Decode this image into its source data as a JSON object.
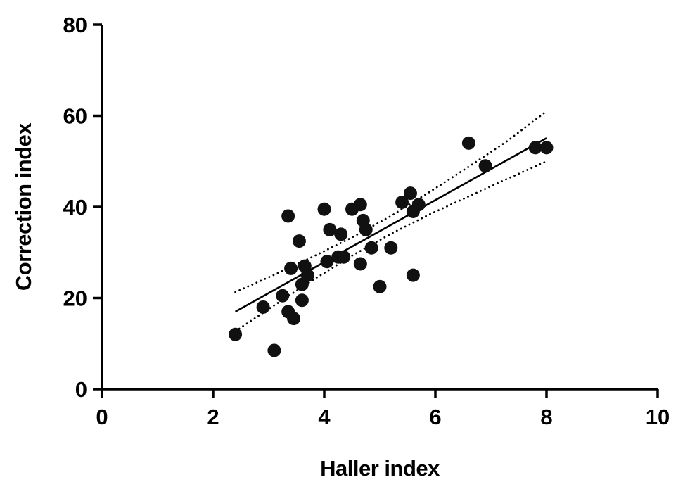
{
  "figure": {
    "xlabel": "Haller index",
    "ylabel": "Correction index"
  },
  "chart_data": {
    "type": "scatter",
    "title": "",
    "xlabel": "Haller index",
    "ylabel": "Correction index",
    "xlim": [
      0,
      10
    ],
    "ylim": [
      0,
      80
    ],
    "x_ticks": [
      0,
      2,
      4,
      6,
      8,
      10
    ],
    "y_ticks": [
      0,
      20,
      40,
      60,
      80
    ],
    "grid": false,
    "legend": "none",
    "marker_color": "#111111",
    "line_color": "#000000",
    "ci_style": "dotted",
    "points": [
      [
        2.4,
        12
      ],
      [
        2.9,
        18
      ],
      [
        3.1,
        8.5
      ],
      [
        3.25,
        20.5
      ],
      [
        3.35,
        17
      ],
      [
        3.35,
        38
      ],
      [
        3.4,
        26.5
      ],
      [
        3.45,
        15.5
      ],
      [
        3.55,
        32.5
      ],
      [
        3.6,
        23
      ],
      [
        3.6,
        19.5
      ],
      [
        3.65,
        27
      ],
      [
        3.7,
        25
      ],
      [
        4.0,
        39.5
      ],
      [
        4.05,
        28
      ],
      [
        4.1,
        35
      ],
      [
        4.25,
        29
      ],
      [
        4.3,
        34
      ],
      [
        4.35,
        29
      ],
      [
        4.5,
        39.5
      ],
      [
        4.65,
        40.5
      ],
      [
        4.65,
        27.5
      ],
      [
        4.7,
        37
      ],
      [
        4.75,
        35
      ],
      [
        4.85,
        31
      ],
      [
        5.0,
        22.5
      ],
      [
        5.2,
        31
      ],
      [
        5.4,
        41
      ],
      [
        5.55,
        43
      ],
      [
        5.6,
        39
      ],
      [
        5.6,
        25
      ],
      [
        5.7,
        40.5
      ],
      [
        6.6,
        54
      ],
      [
        6.9,
        49
      ],
      [
        7.8,
        53
      ],
      [
        8.0,
        53
      ]
    ],
    "regression_line": {
      "x1": 2.4,
      "y1": 17.0,
      "x2": 8.0,
      "y2": 55.1
    },
    "ci_upper": [
      [
        2.4,
        21.3
      ],
      [
        3.1,
        25.1
      ],
      [
        3.8,
        29.1
      ],
      [
        4.5,
        33.3
      ],
      [
        5.2,
        38.0
      ],
      [
        5.9,
        43.3
      ],
      [
        6.6,
        48.8
      ],
      [
        7.3,
        54.5
      ],
      [
        8.0,
        61.0
      ]
    ],
    "ci_lower": [
      [
        2.4,
        12.7
      ],
      [
        3.1,
        18.4
      ],
      [
        3.8,
        24.0
      ],
      [
        4.5,
        29.3
      ],
      [
        5.2,
        34.1
      ],
      [
        5.9,
        38.4
      ],
      [
        6.6,
        42.3
      ],
      [
        7.3,
        46.2
      ],
      [
        8.0,
        50.0
      ]
    ]
  }
}
